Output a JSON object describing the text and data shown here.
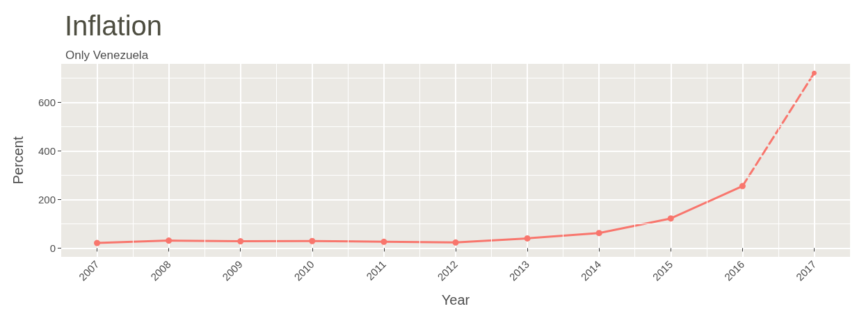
{
  "chart_data": {
    "type": "line",
    "title": "Inflation",
    "subtitle": "Only Venezuela",
    "xlabel": "Year",
    "ylabel": "Percent",
    "x": [
      2007,
      2008,
      2009,
      2010,
      2011,
      2012,
      2013,
      2014,
      2015,
      2016,
      2017
    ],
    "series": [
      {
        "color": "#f8766d",
        "line_style": "solid",
        "values": [
          21,
          31,
          28,
          29,
          26,
          23,
          40,
          62,
          122,
          255,
          null
        ]
      },
      {
        "color": "#f8766d",
        "line_style": "dashed",
        "values": [
          null,
          null,
          null,
          null,
          null,
          null,
          null,
          null,
          null,
          255,
          720
        ]
      }
    ],
    "xlim": [
      2006.5,
      2017.5
    ],
    "xticks": [
      2007,
      2008,
      2009,
      2010,
      2011,
      2012,
      2013,
      2014,
      2015,
      2016,
      2017
    ],
    "ylim": [
      -36,
      758
    ],
    "yticks": [
      0,
      200,
      400,
      600
    ],
    "grid": true,
    "marker": "circle"
  }
}
